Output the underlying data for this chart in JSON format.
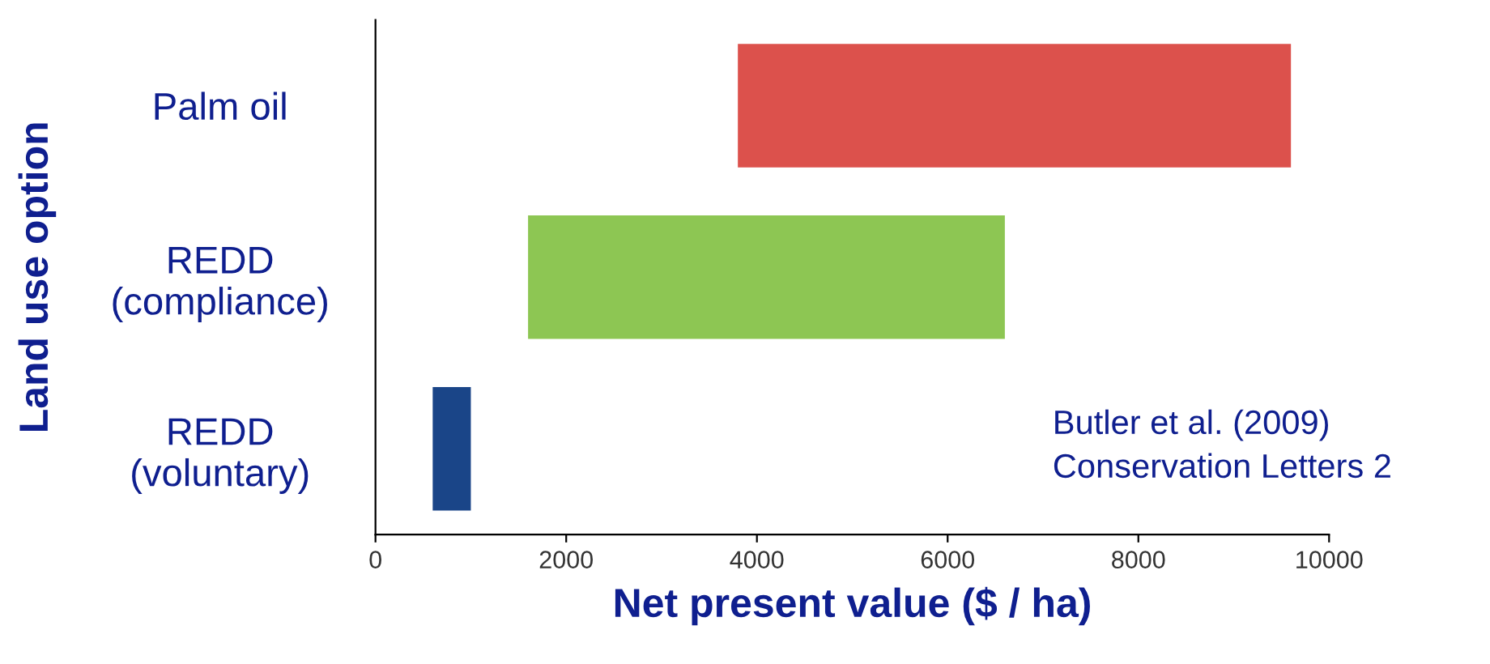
{
  "chart_data": {
    "type": "bar",
    "orientation": "horizontal",
    "xlabel": "Net present value ($ / ha)",
    "ylabel": "Land use option",
    "categories": [
      "Palm oil",
      "REDD\n(compliance)",
      "REDD\n(voluntary)"
    ],
    "base": [
      3800,
      1600,
      600
    ],
    "values": [
      5800,
      5000,
      400
    ],
    "colors": [
      "#dc514c",
      "#8dc653",
      "#1a4588"
    ],
    "xlim": [
      0,
      10000
    ],
    "xticks": [
      0,
      2000,
      4000,
      6000,
      8000,
      10000
    ],
    "grid": false,
    "annotations": [
      "Butler et al. (2009)\nConservation Letters 2"
    ]
  }
}
